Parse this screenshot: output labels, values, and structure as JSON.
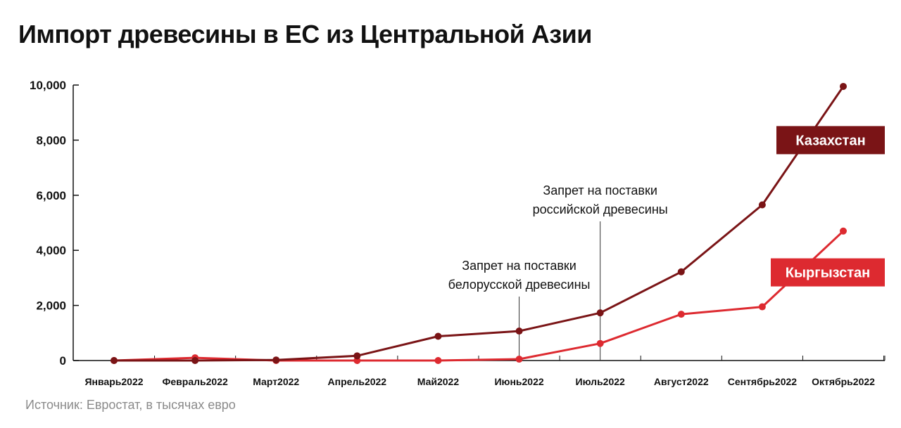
{
  "title": "Импорт древесины в ЕС из Центральной Азии",
  "source": "Источник: Евростат, в тысячах евро",
  "chart_data": {
    "type": "line",
    "title": "Импорт древесины в ЕС из Центральной Азии",
    "xlabel": "",
    "ylabel": "",
    "categories": [
      "Январь2022",
      "Февраль2022",
      "Март2022",
      "Апрель2022",
      "Май2022",
      "Июнь2022",
      "Июль2022",
      "Август2022",
      "Сентябрь2022",
      "Октябрь2022"
    ],
    "y_ticks": [
      "0",
      "2,000",
      "4,000",
      "6,000",
      "8,000",
      "10,000"
    ],
    "ylim": [
      0,
      10000
    ],
    "grid": false,
    "series": [
      {
        "name": "Казахстан",
        "color": "#7a1416",
        "values": [
          0,
          0,
          20,
          170,
          880,
          1070,
          1730,
          3220,
          5650,
          9950
        ]
      },
      {
        "name": "Кыргызстан",
        "color": "#dd2a30",
        "values": [
          0,
          100,
          0,
          0,
          0,
          50,
          620,
          1680,
          1950,
          4700
        ]
      }
    ],
    "annotations": [
      {
        "category": "Июнь2022",
        "lines": [
          "Запрет на поставки",
          "белорусской древесины"
        ]
      },
      {
        "category": "Июль2022",
        "lines": [
          "Запрет на поставки",
          "российской древесины"
        ]
      }
    ]
  }
}
